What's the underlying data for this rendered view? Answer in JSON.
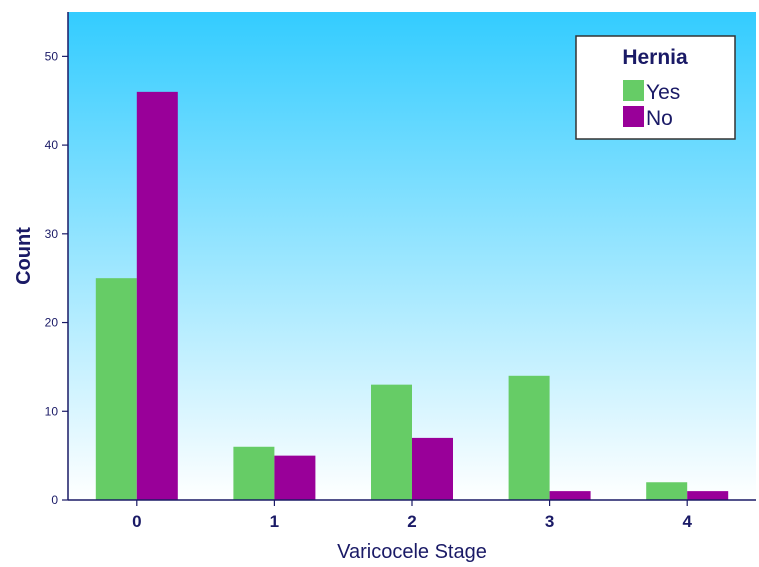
{
  "chart_data": {
    "type": "bar",
    "xlabel": "Varicocele Stage",
    "ylabel": "Count",
    "categories": [
      "0",
      "1",
      "2",
      "3",
      "4"
    ],
    "series": [
      {
        "name": "Yes",
        "color": "#66cc66",
        "values": [
          25,
          6,
          13,
          14,
          2
        ]
      },
      {
        "name": "No",
        "color": "#990099",
        "values": [
          46,
          5,
          7,
          1,
          1
        ]
      }
    ],
    "ylim": [
      0,
      55
    ],
    "yticks": [
      "0",
      "10",
      "20",
      "30",
      "40",
      "50"
    ],
    "legend": {
      "title": "Hernia",
      "position": "top-right"
    },
    "grid": false,
    "background": {
      "top": "#33ccff",
      "bottom": "#ffffff"
    },
    "text_color": "#1a1a66"
  }
}
